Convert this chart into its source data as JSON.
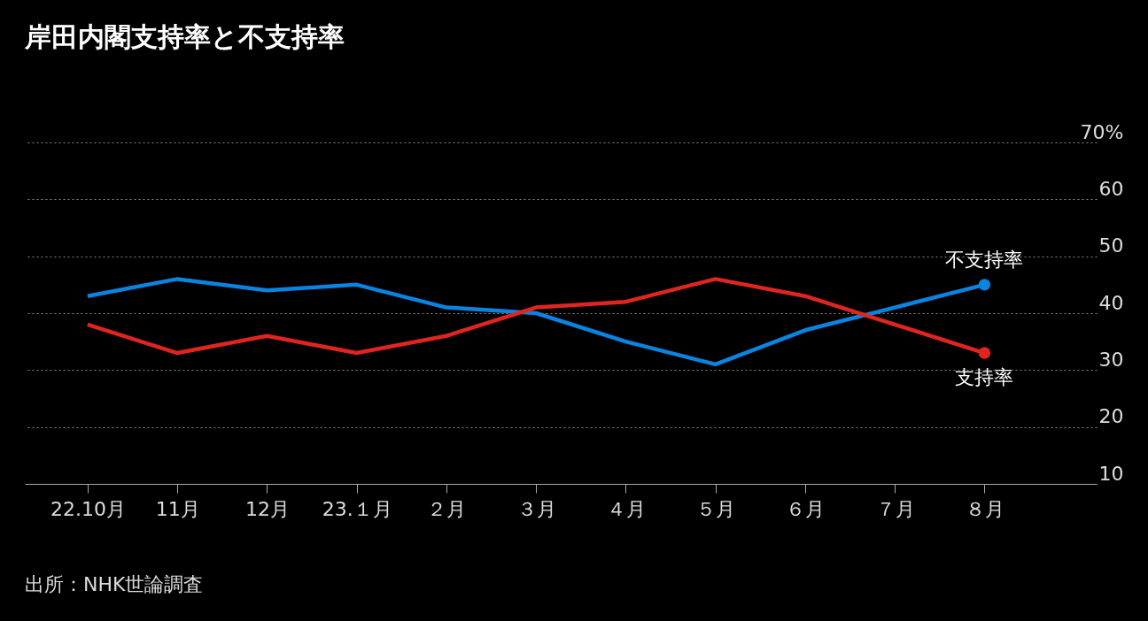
{
  "chart_data": {
    "type": "line",
    "title": "岸田内閣支持率と不支持率",
    "categories": [
      "22.10月",
      "11月",
      "12月",
      "23.１月",
      "２月",
      "３月",
      "４月",
      "５月",
      "６月",
      "７月",
      "８月"
    ],
    "series": [
      {
        "name": "不支持率",
        "color": "#0a84e0",
        "values": [
          43,
          46,
          44,
          45,
          41,
          40,
          35,
          31,
          37,
          41,
          45
        ]
      },
      {
        "name": "支持率",
        "color": "#e0251f",
        "values": [
          38,
          33,
          36,
          33,
          36,
          41,
          42,
          46,
          43,
          38,
          33
        ]
      }
    ],
    "ylim": [
      10,
      70
    ],
    "yticks": [
      10,
      20,
      30,
      40,
      50,
      60,
      {
        "value": 70,
        "label": "70%"
      }
    ],
    "grid": "y",
    "annotations": [
      "出所：NHK世論調査"
    ]
  }
}
